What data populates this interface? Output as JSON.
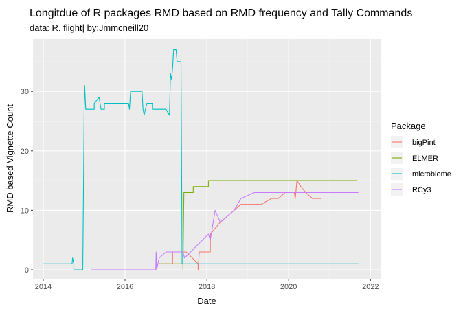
{
  "chart_data": {
    "type": "line",
    "title": "Longitdue of R packages RMD based on RMD frequency and Tally Commands",
    "subtitle": "data: R. flight| by:Jmmcneill20",
    "xlabel": "Date",
    "ylabel": "RMD based Vignette Count",
    "x_axis_type": "date",
    "xlim": [
      "2013-10-01",
      "2022-04-01"
    ],
    "ylim": [
      -1.5,
      38.8
    ],
    "x_ticks": [
      "2014",
      "2016",
      "2018",
      "2020",
      "2022"
    ],
    "y_ticks": [
      "0",
      "10",
      "20",
      "30"
    ],
    "grid": true,
    "legend_title": "Package",
    "legend_position": "right",
    "series": [
      {
        "name": "bigPint",
        "color": "#F8766D",
        "points": [
          [
            "2016-11-01",
            1
          ],
          [
            "2017-03-01",
            1
          ],
          [
            "2017-03-01",
            3
          ],
          [
            "2017-07-01",
            3
          ],
          [
            "2017-10-15",
            1
          ],
          [
            "2017-10-15",
            0
          ],
          [
            "2017-10-25",
            3
          ],
          [
            "2018-02-01",
            3
          ],
          [
            "2018-02-01",
            6
          ],
          [
            "2018-05-01",
            8
          ],
          [
            "2018-07-01",
            9
          ],
          [
            "2018-09-01",
            10
          ],
          [
            "2018-11-01",
            11
          ],
          [
            "2019-05-01",
            11
          ],
          [
            "2019-08-01",
            12
          ],
          [
            "2019-10-01",
            12
          ],
          [
            "2019-12-01",
            13
          ],
          [
            "2020-02-20",
            13
          ],
          [
            "2020-03-01",
            12
          ],
          [
            "2020-03-15",
            15
          ],
          [
            "2020-04-20",
            14
          ],
          [
            "2020-06-01",
            13
          ],
          [
            "2020-08-01",
            12
          ],
          [
            "2020-10-15",
            12
          ]
        ]
      },
      {
        "name": "ELMER",
        "color": "#7CAE00",
        "points": [
          [
            "2016-11-01",
            1
          ],
          [
            "2017-06-01",
            1
          ],
          [
            "2017-06-01",
            0
          ],
          [
            "2017-06-10",
            13
          ],
          [
            "2017-09-01",
            13
          ],
          [
            "2017-09-01",
            14
          ],
          [
            "2018-01-15",
            14
          ],
          [
            "2018-01-15",
            15
          ],
          [
            "2021-09-01",
            15
          ]
        ]
      },
      {
        "name": "microbiome",
        "color": "#00BFC4",
        "points": [
          [
            "2014-01-01",
            1
          ],
          [
            "2014-09-15",
            1
          ],
          [
            "2014-09-20",
            2
          ],
          [
            "2014-10-01",
            1
          ],
          [
            "2014-10-01",
            0
          ],
          [
            "2014-12-20",
            0
          ],
          [
            "2015-01-01",
            27
          ],
          [
            "2015-01-05",
            31
          ],
          [
            "2015-01-15",
            27
          ],
          [
            "2015-04-01",
            27
          ],
          [
            "2015-04-01",
            28
          ],
          [
            "2015-05-15",
            29
          ],
          [
            "2015-06-01",
            27
          ],
          [
            "2015-07-01",
            27
          ],
          [
            "2015-07-01",
            28
          ],
          [
            "2016-02-01",
            28
          ],
          [
            "2016-02-10",
            27
          ],
          [
            "2016-02-20",
            30
          ],
          [
            "2016-06-01",
            30
          ],
          [
            "2016-06-10",
            27
          ],
          [
            "2016-06-20",
            26
          ],
          [
            "2016-07-01",
            27
          ],
          [
            "2016-07-15",
            28
          ],
          [
            "2016-09-01",
            28
          ],
          [
            "2016-09-01",
            27
          ],
          [
            "2017-01-01",
            27
          ],
          [
            "2017-02-01",
            26
          ],
          [
            "2017-02-10",
            33
          ],
          [
            "2017-02-20",
            32
          ],
          [
            "2017-03-01",
            34
          ],
          [
            "2017-03-10",
            37
          ],
          [
            "2017-04-01",
            37
          ],
          [
            "2017-04-10",
            35
          ],
          [
            "2017-05-15",
            35
          ],
          [
            "2017-05-25",
            1
          ],
          [
            "2021-09-15",
            1
          ]
        ]
      },
      {
        "name": "RCy3",
        "color": "#C77CFF",
        "points": [
          [
            "2015-03-01",
            0
          ],
          [
            "2016-10-01",
            0
          ],
          [
            "2016-10-05",
            3
          ],
          [
            "2016-10-10",
            0
          ],
          [
            "2016-11-01",
            2
          ],
          [
            "2017-01-01",
            3
          ],
          [
            "2017-06-01",
            3
          ],
          [
            "2017-06-15",
            2
          ],
          [
            "2018-01-15",
            6
          ],
          [
            "2018-02-01",
            5
          ],
          [
            "2018-03-15",
            10
          ],
          [
            "2018-05-01",
            8
          ],
          [
            "2018-07-01",
            9
          ],
          [
            "2018-09-01",
            10
          ],
          [
            "2018-11-01",
            12
          ],
          [
            "2019-03-01",
            13
          ],
          [
            "2021-09-15",
            13
          ]
        ]
      }
    ]
  }
}
